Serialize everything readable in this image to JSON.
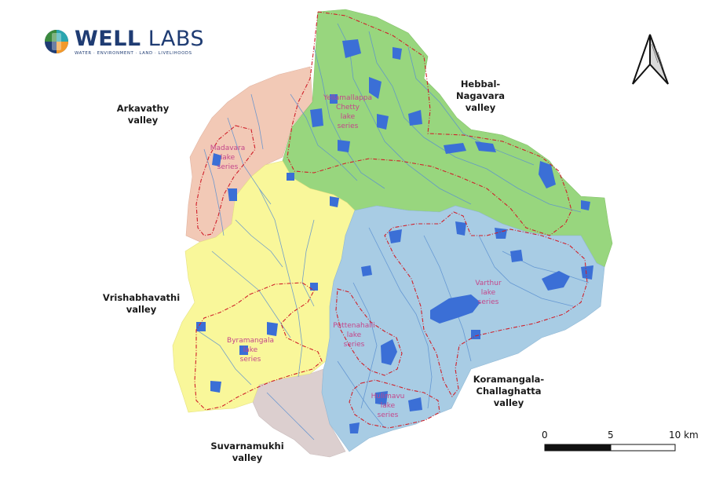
{
  "logo": {
    "word1": "WELL",
    "word2": "LABS",
    "tagline": "WATER · ENVIRONMENT · LAND · LIVELIHOODS",
    "colors": {
      "navy": "#1f3c73",
      "teal": "#2aa6b0",
      "orange": "#f39a2b",
      "green": "#3b8a3e"
    }
  },
  "north_arrow": {
    "icon": "north-arrow-icon"
  },
  "valleys": [
    {
      "id": "arkavathy",
      "lines": [
        "Arkavathy",
        "valley"
      ],
      "color": "#f2c9b6"
    },
    {
      "id": "hebbal-nagavara",
      "lines": [
        "Hebbal-",
        "Nagavara",
        "valley"
      ],
      "color": "#98d67e"
    },
    {
      "id": "vrishabhavathi",
      "lines": [
        "Vrishabhavathi",
        "valley"
      ],
      "color": "#f9f79a"
    },
    {
      "id": "koramangala-challaghatta",
      "lines": [
        "Koramangala-",
        "Challaghatta",
        "valley"
      ],
      "color": "#a8cce4"
    },
    {
      "id": "suvarnamukhi",
      "lines": [
        "Suvarnamukhi",
        "valley"
      ],
      "color": "#dccfcf"
    }
  ],
  "lake_series": [
    {
      "id": "yellamallappa",
      "lines": [
        "Yellamallappa",
        "Chetty",
        "lake",
        "series"
      ]
    },
    {
      "id": "madavara",
      "lines": [
        "Madavara",
        "lake",
        "series"
      ]
    },
    {
      "id": "varthur",
      "lines": [
        "Varthur",
        "lake",
        "series"
      ]
    },
    {
      "id": "puttenahalli",
      "lines": [
        "Puttenahalli",
        "lake",
        "series"
      ]
    },
    {
      "id": "byramangala",
      "lines": [
        "Byramangala",
        "lake",
        "series"
      ]
    },
    {
      "id": "hulimavu",
      "lines": [
        "Hulimavu",
        "lake",
        "series"
      ]
    }
  ],
  "scale_bar": {
    "ticks": [
      "0",
      "5",
      "10 km"
    ]
  },
  "colors": {
    "water": "#3b6fd6",
    "river": "#5a8fd0",
    "boundary": "#d0202a",
    "label": "#c4468a"
  }
}
